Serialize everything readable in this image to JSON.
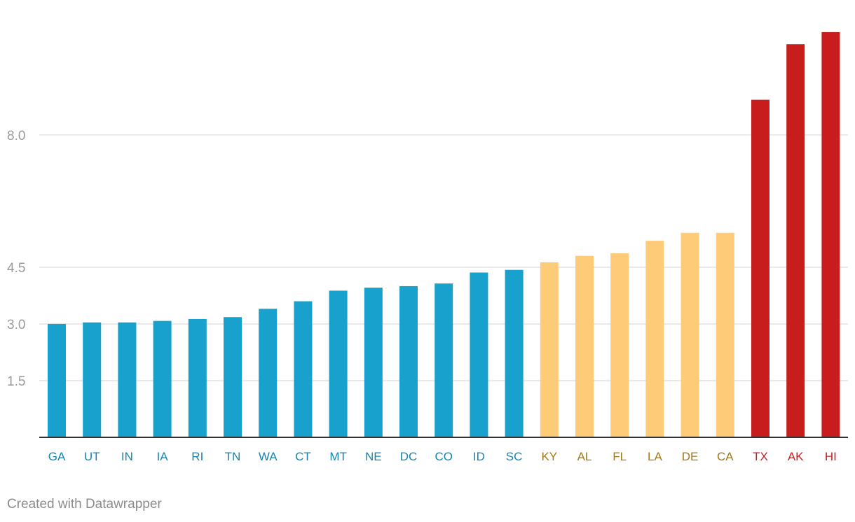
{
  "chart_data": {
    "type": "bar",
    "title": "",
    "xlabel": "",
    "ylabel": "",
    "ylim": [
      0,
      10.7
    ],
    "yticks": [
      1.5,
      3.0,
      4.5,
      8.0
    ],
    "ytick_labels": [
      "1.5",
      "3.0",
      "4.5",
      "8.0"
    ],
    "categories": [
      "GA",
      "UT",
      "IN",
      "IA",
      "RI",
      "TN",
      "WA",
      "CT",
      "MT",
      "NE",
      "DC",
      "CO",
      "ID",
      "SC",
      "KY",
      "AL",
      "FL",
      "LA",
      "DE",
      "CA",
      "TX",
      "AK",
      "HI"
    ],
    "values": [
      3.0,
      3.04,
      3.04,
      3.08,
      3.13,
      3.18,
      3.4,
      3.6,
      3.88,
      3.96,
      4.0,
      4.07,
      4.36,
      4.43,
      4.63,
      4.8,
      4.87,
      5.2,
      5.41,
      5.41,
      8.93,
      10.4,
      10.72
    ],
    "groups": [
      "low",
      "low",
      "low",
      "low",
      "low",
      "low",
      "low",
      "low",
      "low",
      "low",
      "low",
      "low",
      "low",
      "low",
      "mid",
      "mid",
      "mid",
      "mid",
      "mid",
      "mid",
      "high",
      "high",
      "high"
    ],
    "colors": {
      "low_bar": "#18a1cd",
      "low_label": "#1486b0",
      "mid_bar": "#fecb78",
      "mid_label": "#a57717",
      "high_bar": "#c71e1d",
      "high_label": "#c71e1d",
      "grid": "#e2e2e2",
      "axis": "#333333"
    }
  },
  "footer": {
    "credit": "Created with Datawrapper"
  }
}
